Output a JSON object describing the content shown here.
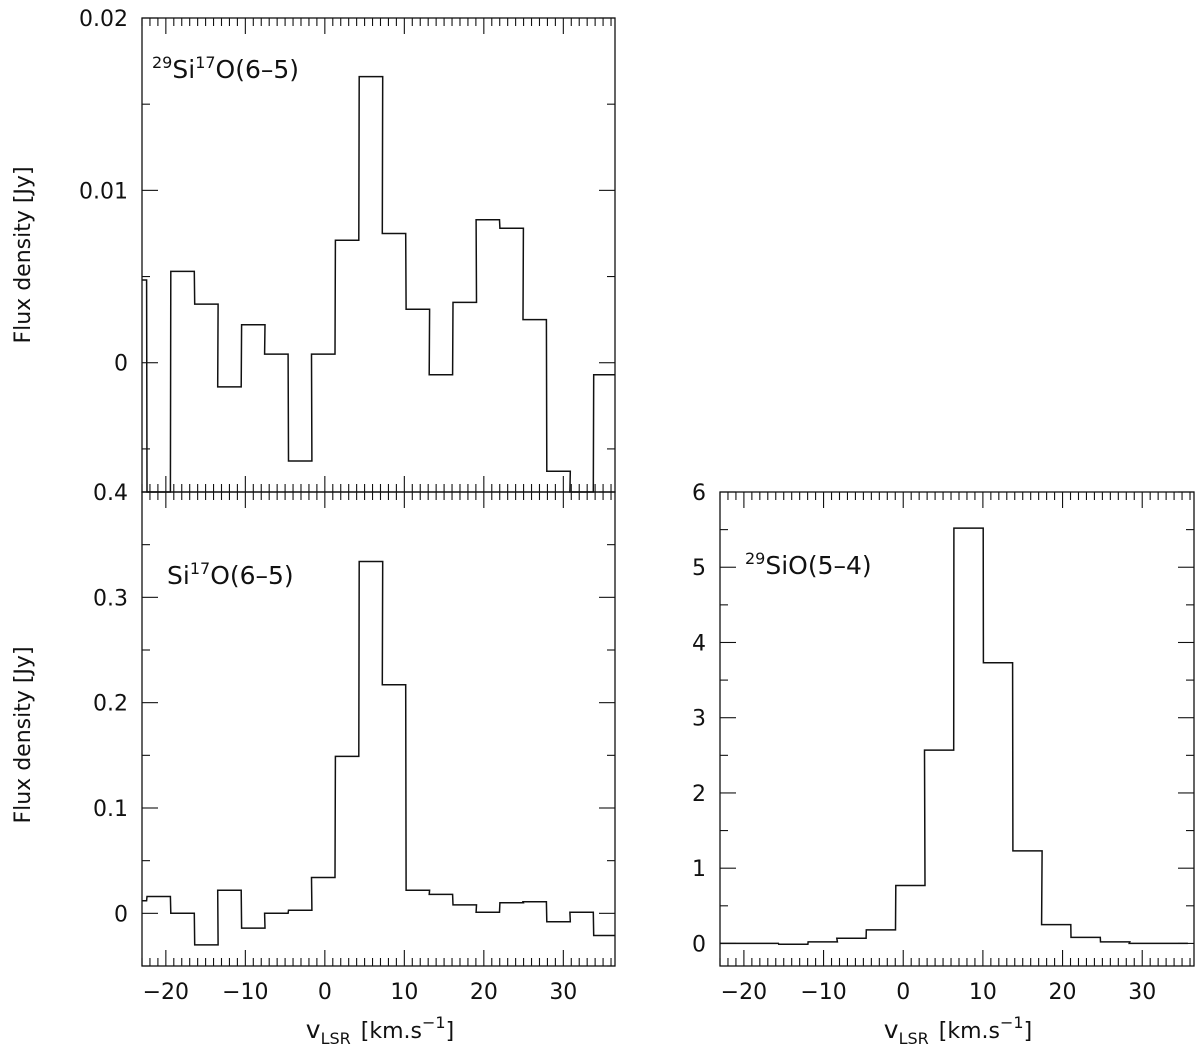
{
  "chart_data": [
    {
      "type": "line",
      "step": true,
      "id": "top-left",
      "label": {
        "sup": "29",
        "main": "Si",
        "sup2": "17",
        "rest": "O(6–5)"
      },
      "ylabel": "Flux density [Jy]",
      "xlabel": "",
      "xlim": [
        -23,
        36.5
      ],
      "ylim": [
        -0.0075,
        0.02
      ],
      "x_ticks": [
        -20,
        -10,
        0,
        10,
        20,
        30
      ],
      "y_ticks": [
        0.02,
        0.01,
        0
      ],
      "y_tick_labels": [
        "0.02",
        "0.01",
        "0"
      ],
      "x_tick_labels": [],
      "bin_width": 2.95,
      "x": [
        -23.9,
        -20.9,
        -17.9,
        -14.9,
        -12.0,
        -9.0,
        -6.1,
        -3.1,
        -0.2,
        2.8,
        5.8,
        8.7,
        11.7,
        14.6,
        17.6,
        20.5,
        23.5,
        26.4,
        29.4,
        32.3,
        35.3
      ],
      "values": [
        0.0048,
        -0.009,
        0.0053,
        0.0034,
        -0.0014,
        0.0022,
        0.0005,
        -0.0057,
        0.0005,
        0.0071,
        0.0166,
        0.0075,
        0.0031,
        -0.0007,
        0.0035,
        0.0083,
        0.0078,
        0.0025,
        -0.0063,
        -0.009,
        -0.0007
      ]
    },
    {
      "type": "line",
      "step": true,
      "id": "bottom-left",
      "label": {
        "sup": "",
        "main": "Si",
        "sup2": "17",
        "rest": "O(6–5)"
      },
      "ylabel": "Flux density [Jy]",
      "xlabel": "v_LSR [km.s^-1]",
      "xlim": [
        -23,
        36.5
      ],
      "ylim": [
        -0.05,
        0.4
      ],
      "x_ticks": [
        -20,
        -10,
        0,
        10,
        20,
        30
      ],
      "x_tick_labels": [
        "−20",
        "−10",
        "0",
        "10",
        "20",
        "30"
      ],
      "y_ticks": [
        0.4,
        0.3,
        0.2,
        0.1,
        0
      ],
      "y_tick_labels": [
        "0.4",
        "0.3",
        "0.2",
        "0.1",
        "0"
      ],
      "bin_width": 2.95,
      "x": [
        -23.9,
        -20.9,
        -17.9,
        -14.9,
        -12.0,
        -9.0,
        -6.1,
        -3.1,
        -0.2,
        2.8,
        5.8,
        8.7,
        11.7,
        14.6,
        17.6,
        20.5,
        23.5,
        26.4,
        29.4,
        32.3,
        35.3
      ],
      "values": [
        0.012,
        0.016,
        0.0,
        -0.03,
        0.022,
        -0.014,
        0.0,
        0.003,
        0.034,
        0.149,
        0.334,
        0.217,
        0.022,
        0.018,
        0.008,
        0.001,
        0.01,
        0.011,
        -0.008,
        0.001,
        -0.021
      ]
    },
    {
      "type": "line",
      "step": true,
      "id": "bottom-right",
      "label": {
        "sup": "29",
        "main": "SiO(5–4)",
        "sup2": "",
        "rest": ""
      },
      "ylabel": "",
      "xlabel": "v_LSR [km.s^-1]",
      "xlim": [
        -23,
        36.5
      ],
      "ylim": [
        -0.3,
        6
      ],
      "x_ticks": [
        -20,
        -10,
        0,
        10,
        20,
        30
      ],
      "x_tick_labels": [
        "−20",
        "−10",
        "0",
        "10",
        "20",
        "30"
      ],
      "y_ticks": [
        6,
        5,
        4,
        3,
        2,
        1,
        0
      ],
      "y_tick_labels": [
        "6",
        "5",
        "4",
        "3",
        "2",
        "1",
        "0"
      ],
      "bin_width": 3.67,
      "x": [
        -21.2,
        -17.5,
        -13.8,
        -10.1,
        -6.5,
        -2.8,
        0.9,
        4.5,
        8.2,
        11.9,
        15.6,
        19.2,
        22.9,
        26.6,
        30.2,
        33.9
      ],
      "values": [
        0.0,
        0.0,
        -0.01,
        0.02,
        0.07,
        0.18,
        0.77,
        2.57,
        5.52,
        3.73,
        1.23,
        0.25,
        0.08,
        0.02,
        0.0,
        0.0
      ]
    }
  ],
  "axis_text": {
    "ylabel": "Flux density [Jy]",
    "xlabel_v": "v",
    "xlabel_sub": "LSR",
    "xlabel_unit": "[km.s",
    "xlabel_exp": "−1",
    "xlabel_close": "]"
  }
}
